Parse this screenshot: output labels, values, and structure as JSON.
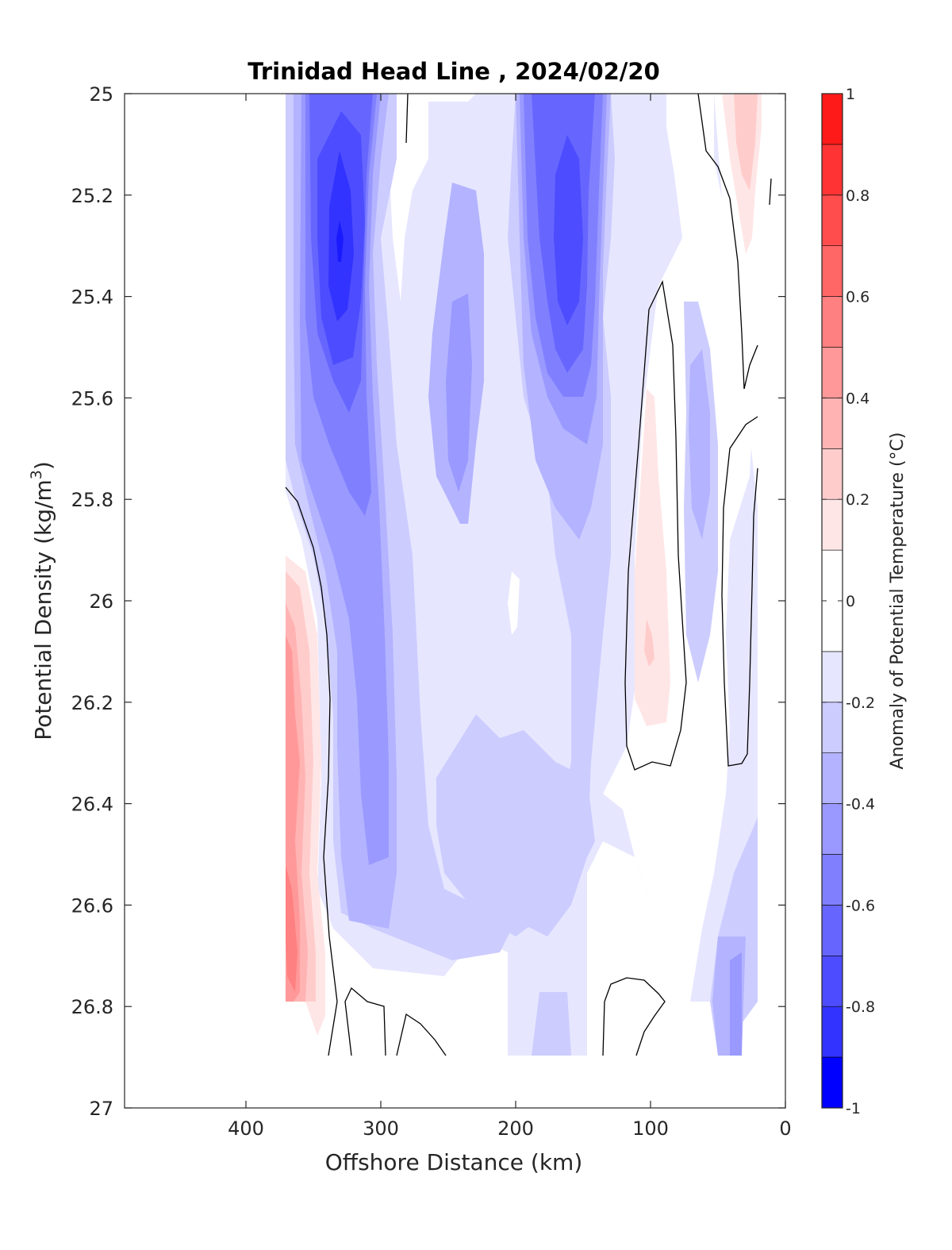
{
  "chart_data": {
    "type": "heatmap",
    "subtype": "filled-contour",
    "title": "Trinidad Head Line , 2024/02/20",
    "xlabel": "Offshore Distance (km)",
    "ylabel": "Potential Density (kg/m",
    "ylabel_superscript": "3",
    "ylabel_suffix": ")",
    "xlim": [
      490,
      0
    ],
    "ylim": [
      27,
      25
    ],
    "x_reversed": true,
    "y_reversed": true,
    "xticks": [
      400,
      300,
      200,
      100,
      0
    ],
    "yticks": [
      25,
      25.2,
      25.4,
      25.6,
      25.8,
      26,
      26.2,
      26.4,
      26.6,
      26.8,
      27
    ],
    "ytick_labels": [
      "25",
      "25.2",
      "25.4",
      "25.6",
      "25.8",
      "26",
      "26.2",
      "26.4",
      "26.6",
      "26.8",
      "27"
    ],
    "colorbar": {
      "label": "Anomaly of Potential Temperature (°C)",
      "range": [
        -1,
        1
      ],
      "ticks": [
        -1,
        -0.8,
        -0.6,
        -0.4,
        -0.2,
        0,
        0.2,
        0.4,
        0.6,
        0.8,
        1
      ],
      "tick_labels": [
        "-1",
        "-0.8",
        "-0.6",
        "-0.4",
        "-0.2",
        "0",
        "0.2",
        "0.4",
        "0.6",
        "0.8",
        "1"
      ],
      "levels": [
        -1,
        -0.9,
        -0.8,
        -0.7,
        -0.6,
        -0.5,
        -0.4,
        -0.3,
        -0.2,
        -0.1,
        0.1,
        0.2,
        0.3,
        0.4,
        0.5,
        0.6,
        0.7,
        0.8,
        0.9,
        1
      ],
      "colors": [
        "#0000ff",
        "#1a1aff",
        "#3333ff",
        "#4d4dff",
        "#6666ff",
        "#8080ff",
        "#9999ff",
        "#b3b3ff",
        "#ccccff",
        "#e6e6ff",
        "#ffffff",
        "#ffe6e6",
        "#ffcccc",
        "#ffb3b3",
        "#ff9999",
        "#ff8080",
        "#ff6666",
        "#ff4d4d",
        "#ff3333",
        "#ff1a1a"
      ]
    },
    "data_extent": {
      "x": [
        20,
        370
      ],
      "y": [
        25,
        26.9
      ]
    },
    "features": [
      {
        "name": "offshore-cold-core",
        "x_center": 330,
        "y_center": 25.3,
        "min_anomaly": -0.8
      },
      {
        "name": "mid-cold-core",
        "x_center": 160,
        "y_center": 25.3,
        "min_anomaly": -0.6
      },
      {
        "name": "central-cold-tongue",
        "x_center": 230,
        "y_center": 25.7,
        "min_anomaly": -0.4
      },
      {
        "name": "warm-offshore-deep",
        "x_center": 362,
        "y_center": 26.6,
        "max_anomaly": 0.5
      },
      {
        "name": "warm-mid-band",
        "x_center": 100,
        "y_center": 26.1,
        "max_anomaly": 0.2
      },
      {
        "name": "warm-nearshore-top",
        "x_center": 30,
        "y_center": 25.1,
        "max_anomaly": 0.3
      }
    ],
    "zero_contour": "black"
  },
  "colors": {
    "zero_contour": "#000000",
    "axis": "#262626",
    "background": "#ffffff"
  }
}
